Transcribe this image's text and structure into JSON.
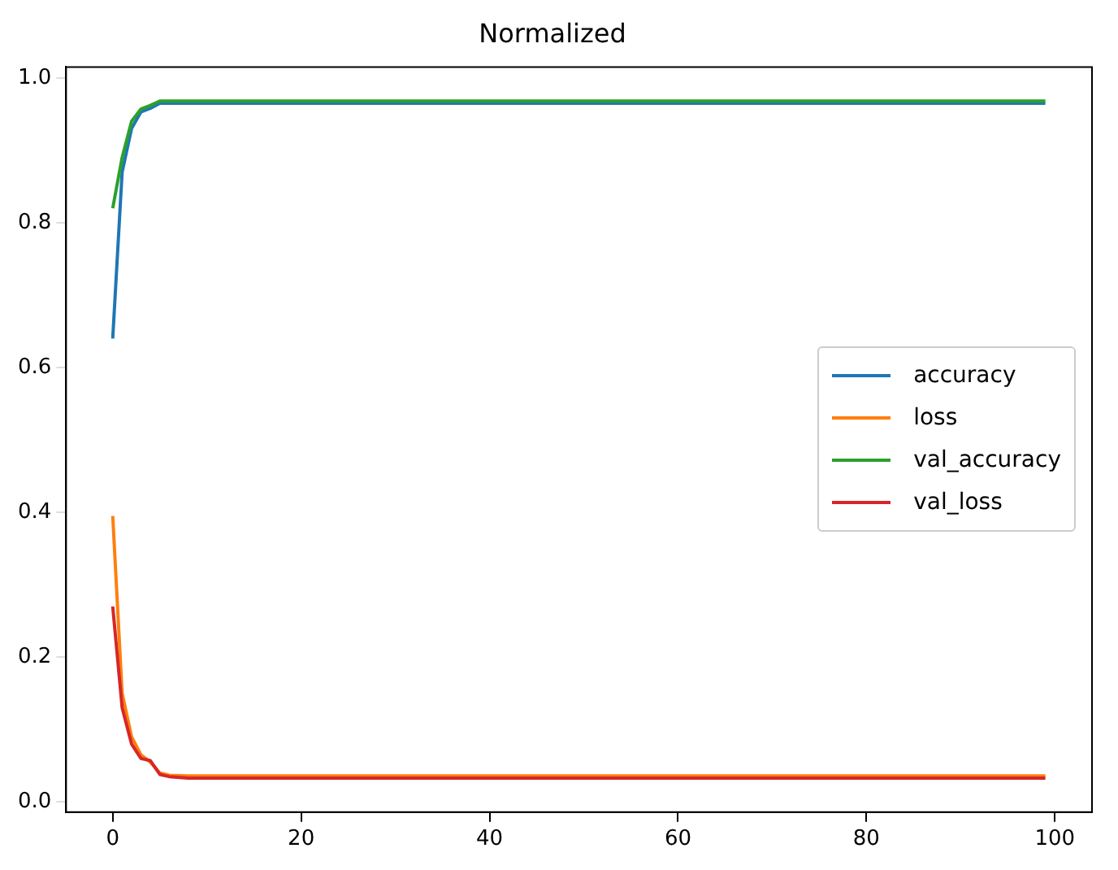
{
  "chart_data": {
    "type": "line",
    "title": "Normalized",
    "x": [
      0,
      1,
      2,
      3,
      4,
      5,
      6,
      8,
      10,
      20,
      40,
      60,
      80,
      99
    ],
    "series": [
      {
        "name": "accuracy",
        "color": "#1f77b4",
        "values": [
          0.64,
          0.87,
          0.93,
          0.953,
          0.958,
          0.965,
          0.965,
          0.965,
          0.965,
          0.965,
          0.965,
          0.965,
          0.965,
          0.965
        ]
      },
      {
        "name": "loss",
        "color": "#ff7f0e",
        "values": [
          0.395,
          0.15,
          0.09,
          0.065,
          0.055,
          0.04,
          0.037,
          0.036,
          0.036,
          0.036,
          0.036,
          0.036,
          0.036,
          0.036
        ]
      },
      {
        "name": "val_accuracy",
        "color": "#2ca02c",
        "values": [
          0.82,
          0.89,
          0.94,
          0.957,
          0.962,
          0.968,
          0.968,
          0.968,
          0.968,
          0.968,
          0.968,
          0.968,
          0.968,
          0.968
        ]
      },
      {
        "name": "val_loss",
        "color": "#d62728",
        "values": [
          0.27,
          0.13,
          0.08,
          0.06,
          0.057,
          0.038,
          0.035,
          0.033,
          0.033,
          0.033,
          0.033,
          0.033,
          0.033,
          0.033
        ]
      }
    ],
    "xlim": [
      -4.95,
      103.95
    ],
    "ylim": [
      -0.014,
      1.015
    ],
    "xticks": [
      0,
      20,
      40,
      60,
      80,
      100
    ],
    "yticks": [
      {
        "value": 0,
        "label": "0.0"
      },
      {
        "value": 0.2,
        "label": "0.2"
      },
      {
        "value": 0.4,
        "label": "0.4"
      },
      {
        "value": 0.6,
        "label": "0.6"
      },
      {
        "value": 0.8,
        "label": "0.8"
      },
      {
        "value": 1,
        "label": "1.0"
      }
    ],
    "grid": false,
    "legend": "right",
    "marker": "none",
    "line_style": "solid"
  }
}
